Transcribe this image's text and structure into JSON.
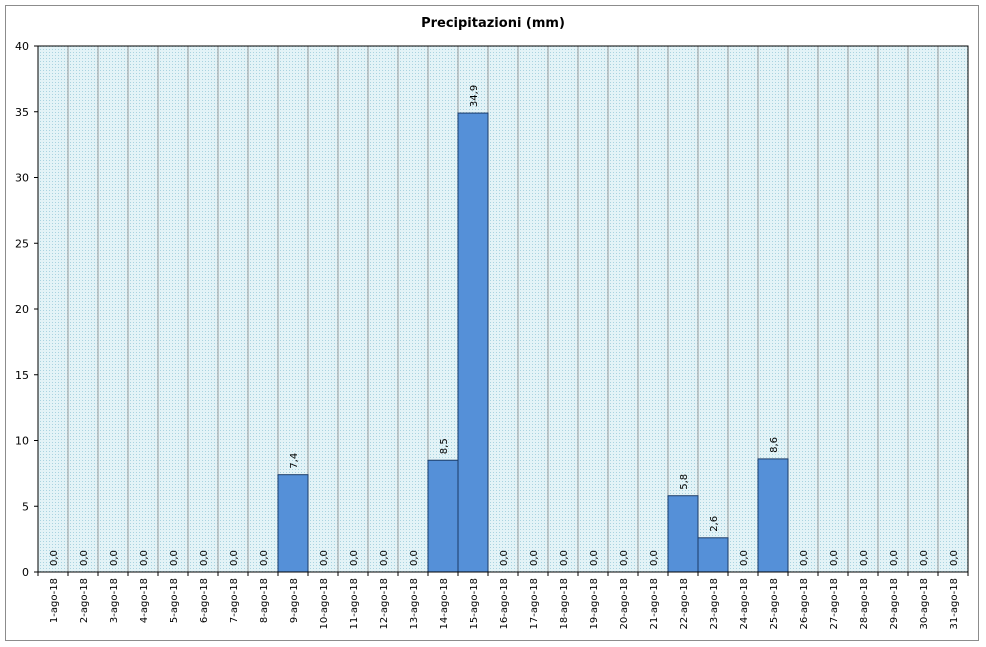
{
  "chart_data": {
    "type": "bar",
    "title": "Precipitazioni (mm)",
    "xlabel": "",
    "ylabel": "",
    "ylim": [
      0,
      40
    ],
    "yticks": [
      0,
      5,
      10,
      15,
      20,
      25,
      30,
      35,
      40
    ],
    "grid": "vertical",
    "legend": "none",
    "categories": [
      "1-ago-18",
      "2-ago-18",
      "3-ago-18",
      "4-ago-18",
      "5-ago-18",
      "6-ago-18",
      "7-ago-18",
      "8-ago-18",
      "9-ago-18",
      "10-ago-18",
      "11-ago-18",
      "12-ago-18",
      "13-ago-18",
      "14-ago-18",
      "15-ago-18",
      "16-ago-18",
      "17-ago-18",
      "18-ago-18",
      "19-ago-18",
      "20-ago-18",
      "21-ago-18",
      "22-ago-18",
      "23-ago-18",
      "24-ago-18",
      "25-ago-18",
      "26-ago-18",
      "27-ago-18",
      "28-ago-18",
      "29-ago-18",
      "30-ago-18",
      "31-ago-18"
    ],
    "values": [
      0,
      0,
      0,
      0,
      0,
      0,
      0,
      0,
      7.4,
      0,
      0,
      0,
      0,
      8.5,
      34.9,
      0,
      0,
      0,
      0,
      0,
      0,
      5.8,
      2.6,
      0,
      8.6,
      0,
      0,
      0,
      0,
      0,
      0
    ],
    "data_labels": [
      "0,0",
      "0,0",
      "0,0",
      "0,0",
      "0,0",
      "0,0",
      "0,0",
      "0,0",
      "7,4",
      "0,0",
      "0,0",
      "0,0",
      "0,0",
      "8,5",
      "34,9",
      "0,0",
      "0,0",
      "0,0",
      "0,0",
      "0,0",
      "0,0",
      "5,8",
      "2,6",
      "0,0",
      "8,6",
      "0,0",
      "0,0",
      "0,0",
      "0,0",
      "0,0",
      "0,0"
    ],
    "colors": {
      "bar_fill": "#5590d8",
      "bar_stroke": "#1a3a66",
      "plot_bg": "#e3f3f7",
      "plot_dots": "#a9d3e0",
      "grid": "#9a9a9a"
    }
  }
}
